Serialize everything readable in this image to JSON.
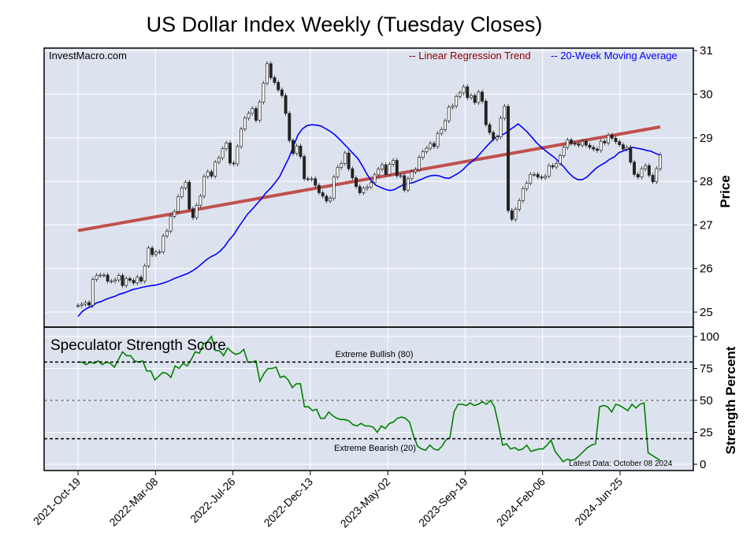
{
  "chart_data": [
    {
      "type": "candlestick",
      "title": "US Dollar Index Weekly (Tuesday Closes)",
      "source": "InvestMacro.com",
      "ylabel": "Price",
      "ylim": [
        24.7,
        31.1
      ],
      "yticks": [
        25,
        26,
        27,
        28,
        29,
        30,
        31
      ],
      "grid": true,
      "legend": [
        "-- Linear Regression Trend",
        "-- 20-Week Moving Average"
      ],
      "legend_position": "top-right",
      "colors": {
        "regression": "#c0504d",
        "moving_average": "#0000ff",
        "candle_up": "#ffffff",
        "candle_down": "#222222",
        "background": "#dde3ee"
      },
      "x_labels": [
        "2021-Oct-19",
        "2022-Mar-08",
        "2022-Jul-26",
        "2022-Dec-13",
        "2023-May-02",
        "2023-Sep-19",
        "2024-Feb-06",
        "2024-Jun-25"
      ],
      "closes": [
        25.15,
        25.18,
        25.22,
        25.16,
        25.75,
        25.84,
        25.85,
        25.85,
        25.71,
        25.71,
        25.74,
        25.84,
        25.61,
        25.77,
        25.73,
        25.67,
        25.8,
        25.71,
        26.06,
        26.47,
        26.32,
        26.38,
        26.38,
        26.75,
        26.86,
        27.2,
        27.31,
        27.65,
        27.85,
        27.98,
        27.37,
        27.17,
        27.45,
        27.66,
        28.11,
        28.22,
        28.12,
        28.44,
        28.54,
        28.75,
        28.88,
        28.42,
        28.4,
        28.8,
        29.2,
        29.45,
        29.56,
        29.67,
        29.4,
        29.82,
        30.25,
        30.7,
        30.38,
        30.27,
        30.1,
        29.97,
        29.56,
        28.94,
        28.64,
        28.81,
        28.57,
        28.06,
        28.05,
        28.06,
        27.91,
        27.74,
        27.66,
        27.55,
        27.61,
        28.1,
        28.32,
        28.41,
        28.65,
        28.29,
        28.08,
        27.88,
        27.74,
        27.84,
        27.87,
        27.97,
        28.15,
        28.28,
        28.38,
        28.16,
        28.39,
        28.48,
        28.13,
        28.13,
        27.8,
        28.06,
        28.22,
        28.27,
        28.55,
        28.68,
        28.76,
        28.87,
        28.8,
        29.1,
        29.19,
        29.39,
        29.7,
        29.73,
        29.95,
        30.03,
        30.17,
        29.92,
        29.97,
        29.81,
        30.05,
        29.84,
        29.3,
        29.12,
        28.97,
        29.02,
        29.45,
        29.72,
        27.33,
        27.13,
        27.36,
        27.56,
        27.83,
        27.96,
        28.16,
        28.16,
        28.1,
        28.08,
        28.12,
        28.36,
        28.33,
        28.41,
        28.59,
        28.78,
        28.95,
        28.87,
        28.86,
        28.83,
        28.92,
        28.83,
        28.78,
        28.74,
        28.71,
        28.92,
        28.88,
        29.06,
        28.99,
        28.91,
        28.84,
        28.74,
        28.78,
        28.44,
        28.16,
        28.1,
        28.29,
        28.36,
        28.14,
        27.99,
        28.29,
        28.61
      ],
      "regression_trend": {
        "start": 26.87,
        "end": 29.25
      },
      "moving_average": [
        24.9,
        25.02,
        25.09,
        25.13,
        25.21,
        25.24,
        25.29,
        25.33,
        25.36,
        25.41,
        25.44,
        25.48,
        25.52,
        25.54,
        25.57,
        25.59,
        25.61,
        25.62,
        25.65,
        25.68,
        25.72,
        25.77,
        25.81,
        25.85,
        25.89,
        25.95,
        26.02,
        26.11,
        26.2,
        26.27,
        26.32,
        26.4,
        26.51,
        26.66,
        26.78,
        26.95,
        27.1,
        27.25,
        27.36,
        27.48,
        27.6,
        27.74,
        27.84,
        27.97,
        28.11,
        28.33,
        28.54,
        28.81,
        29.07,
        29.21,
        29.28,
        29.3,
        29.29,
        29.27,
        29.21,
        29.15,
        29.07,
        28.97,
        28.86,
        28.75,
        28.64,
        28.53,
        28.36,
        28.17,
        28.01,
        27.91,
        27.86,
        27.82,
        27.79,
        27.81,
        27.87,
        27.92,
        27.95,
        27.97,
        28.01,
        28.05,
        28.1,
        28.13,
        28.14,
        28.12,
        28.08,
        28.07,
        28.13,
        28.19,
        28.27,
        28.38,
        28.46,
        28.55,
        28.67,
        28.79,
        28.9,
        29.0,
        29.05,
        29.09,
        29.17,
        29.24,
        29.32,
        29.23,
        29.13,
        29.01,
        28.89,
        28.79,
        28.7,
        28.62,
        28.54,
        28.44,
        28.33,
        28.2,
        28.1,
        28.04,
        28.04,
        28.1,
        28.2,
        28.3,
        28.37,
        28.43,
        28.51,
        28.56,
        28.66,
        28.7,
        28.74,
        28.78,
        28.76,
        28.74,
        28.71,
        28.69,
        28.64,
        28.6
      ]
    },
    {
      "type": "line",
      "title": "Speculator Strength Score",
      "ylabel": "Strength Percent",
      "ylim": [
        0,
        100
      ],
      "yticks": [
        0,
        25,
        50,
        75,
        100
      ],
      "annotations": {
        "bullish": "Extreme Bullish (80)",
        "bearish": "Extreme Bearish (20)",
        "latest": "Latest Data: October 08 2024"
      },
      "reference_lines": [
        80,
        50,
        20
      ],
      "colors": {
        "line": "#008000"
      },
      "values": [
        80,
        80,
        78,
        80,
        79,
        81,
        78,
        80,
        79,
        76,
        82,
        88,
        85,
        85,
        81,
        80,
        81,
        73,
        73,
        66,
        69,
        72,
        71,
        68,
        77,
        75,
        79,
        77,
        82,
        88,
        87,
        94,
        96,
        100,
        89,
        89,
        85,
        91,
        88,
        86,
        87,
        90,
        80,
        80,
        81,
        65,
        71,
        75,
        75,
        76,
        68,
        69,
        66,
        60,
        63,
        63,
        45,
        45,
        42,
        43,
        36,
        36,
        41,
        38,
        36,
        35,
        35,
        34,
        31,
        30,
        32,
        30,
        30,
        29,
        25,
        30,
        28,
        32,
        33,
        36,
        37,
        36,
        33,
        22,
        14,
        12,
        11,
        15,
        12,
        11,
        14,
        19,
        21,
        41,
        47,
        47,
        46,
        48,
        46,
        47,
        49,
        47,
        50,
        45,
        31,
        15,
        16,
        12,
        13,
        11,
        12,
        15,
        10,
        11,
        12,
        12,
        15,
        19,
        10,
        6,
        2,
        4,
        3,
        4,
        7,
        10,
        13,
        15,
        16,
        45,
        46,
        45,
        41,
        47,
        46,
        44,
        42,
        47,
        44,
        47,
        48,
        9,
        7,
        5,
        3
      ]
    }
  ]
}
